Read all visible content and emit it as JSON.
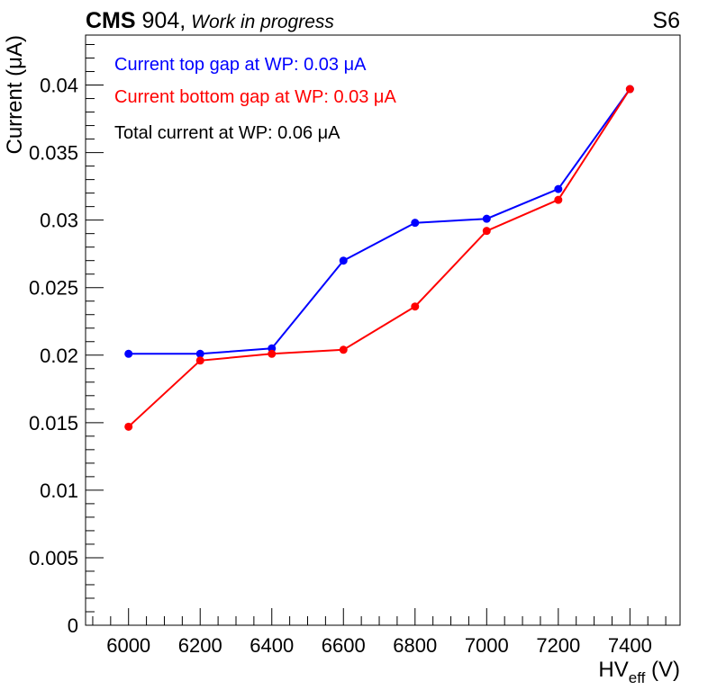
{
  "header": {
    "experiment": "CMS",
    "site": " 904,",
    "status": "Work in progress",
    "tag": "S6"
  },
  "annotations": [
    {
      "text": "Current top gap at WP: 0.03 μA",
      "color": "#0000ff"
    },
    {
      "text": "Current bottom gap at WP: 0.03 μA",
      "color": "#ff0000"
    },
    {
      "text": "Total current at WP: 0.06 μA",
      "color": "#000000"
    }
  ],
  "chart_data": {
    "type": "line",
    "ylabel": "Current (μA)",
    "xlabel_main": "HV",
    "xlabel_sub": "eff",
    "xlabel_unit": " (V)",
    "xlim": [
      5880,
      7540
    ],
    "ylim": [
      0,
      0.0437
    ],
    "x_ticks": [
      6000,
      6200,
      6400,
      6600,
      6800,
      7000,
      7200,
      7400
    ],
    "x_tick_labels": [
      "6000",
      "6200",
      "6400",
      "6600",
      "6800",
      "7000",
      "7200",
      "7400"
    ],
    "y_ticks": [
      0,
      0.005,
      0.01,
      0.015,
      0.02,
      0.025,
      0.03,
      0.035,
      0.04
    ],
    "y_tick_labels": [
      "0",
      "0.005",
      "0.01",
      "0.015",
      "0.02",
      "0.025",
      "0.03",
      "0.035",
      "0.04"
    ],
    "grid": false,
    "legend": "none",
    "x": [
      6000,
      6200,
      6400,
      6600,
      6800,
      7000,
      7200,
      7400
    ],
    "series": [
      {
        "color": "#0000ff",
        "values": [
          0.0201,
          0.0201,
          0.0205,
          0.027,
          0.0298,
          0.0301,
          0.0323,
          0.0397
        ]
      },
      {
        "color": "#ff0000",
        "values": [
          0.0147,
          0.0196,
          0.0201,
          0.0204,
          0.0236,
          0.0292,
          0.0315,
          0.0397
        ]
      }
    ]
  }
}
